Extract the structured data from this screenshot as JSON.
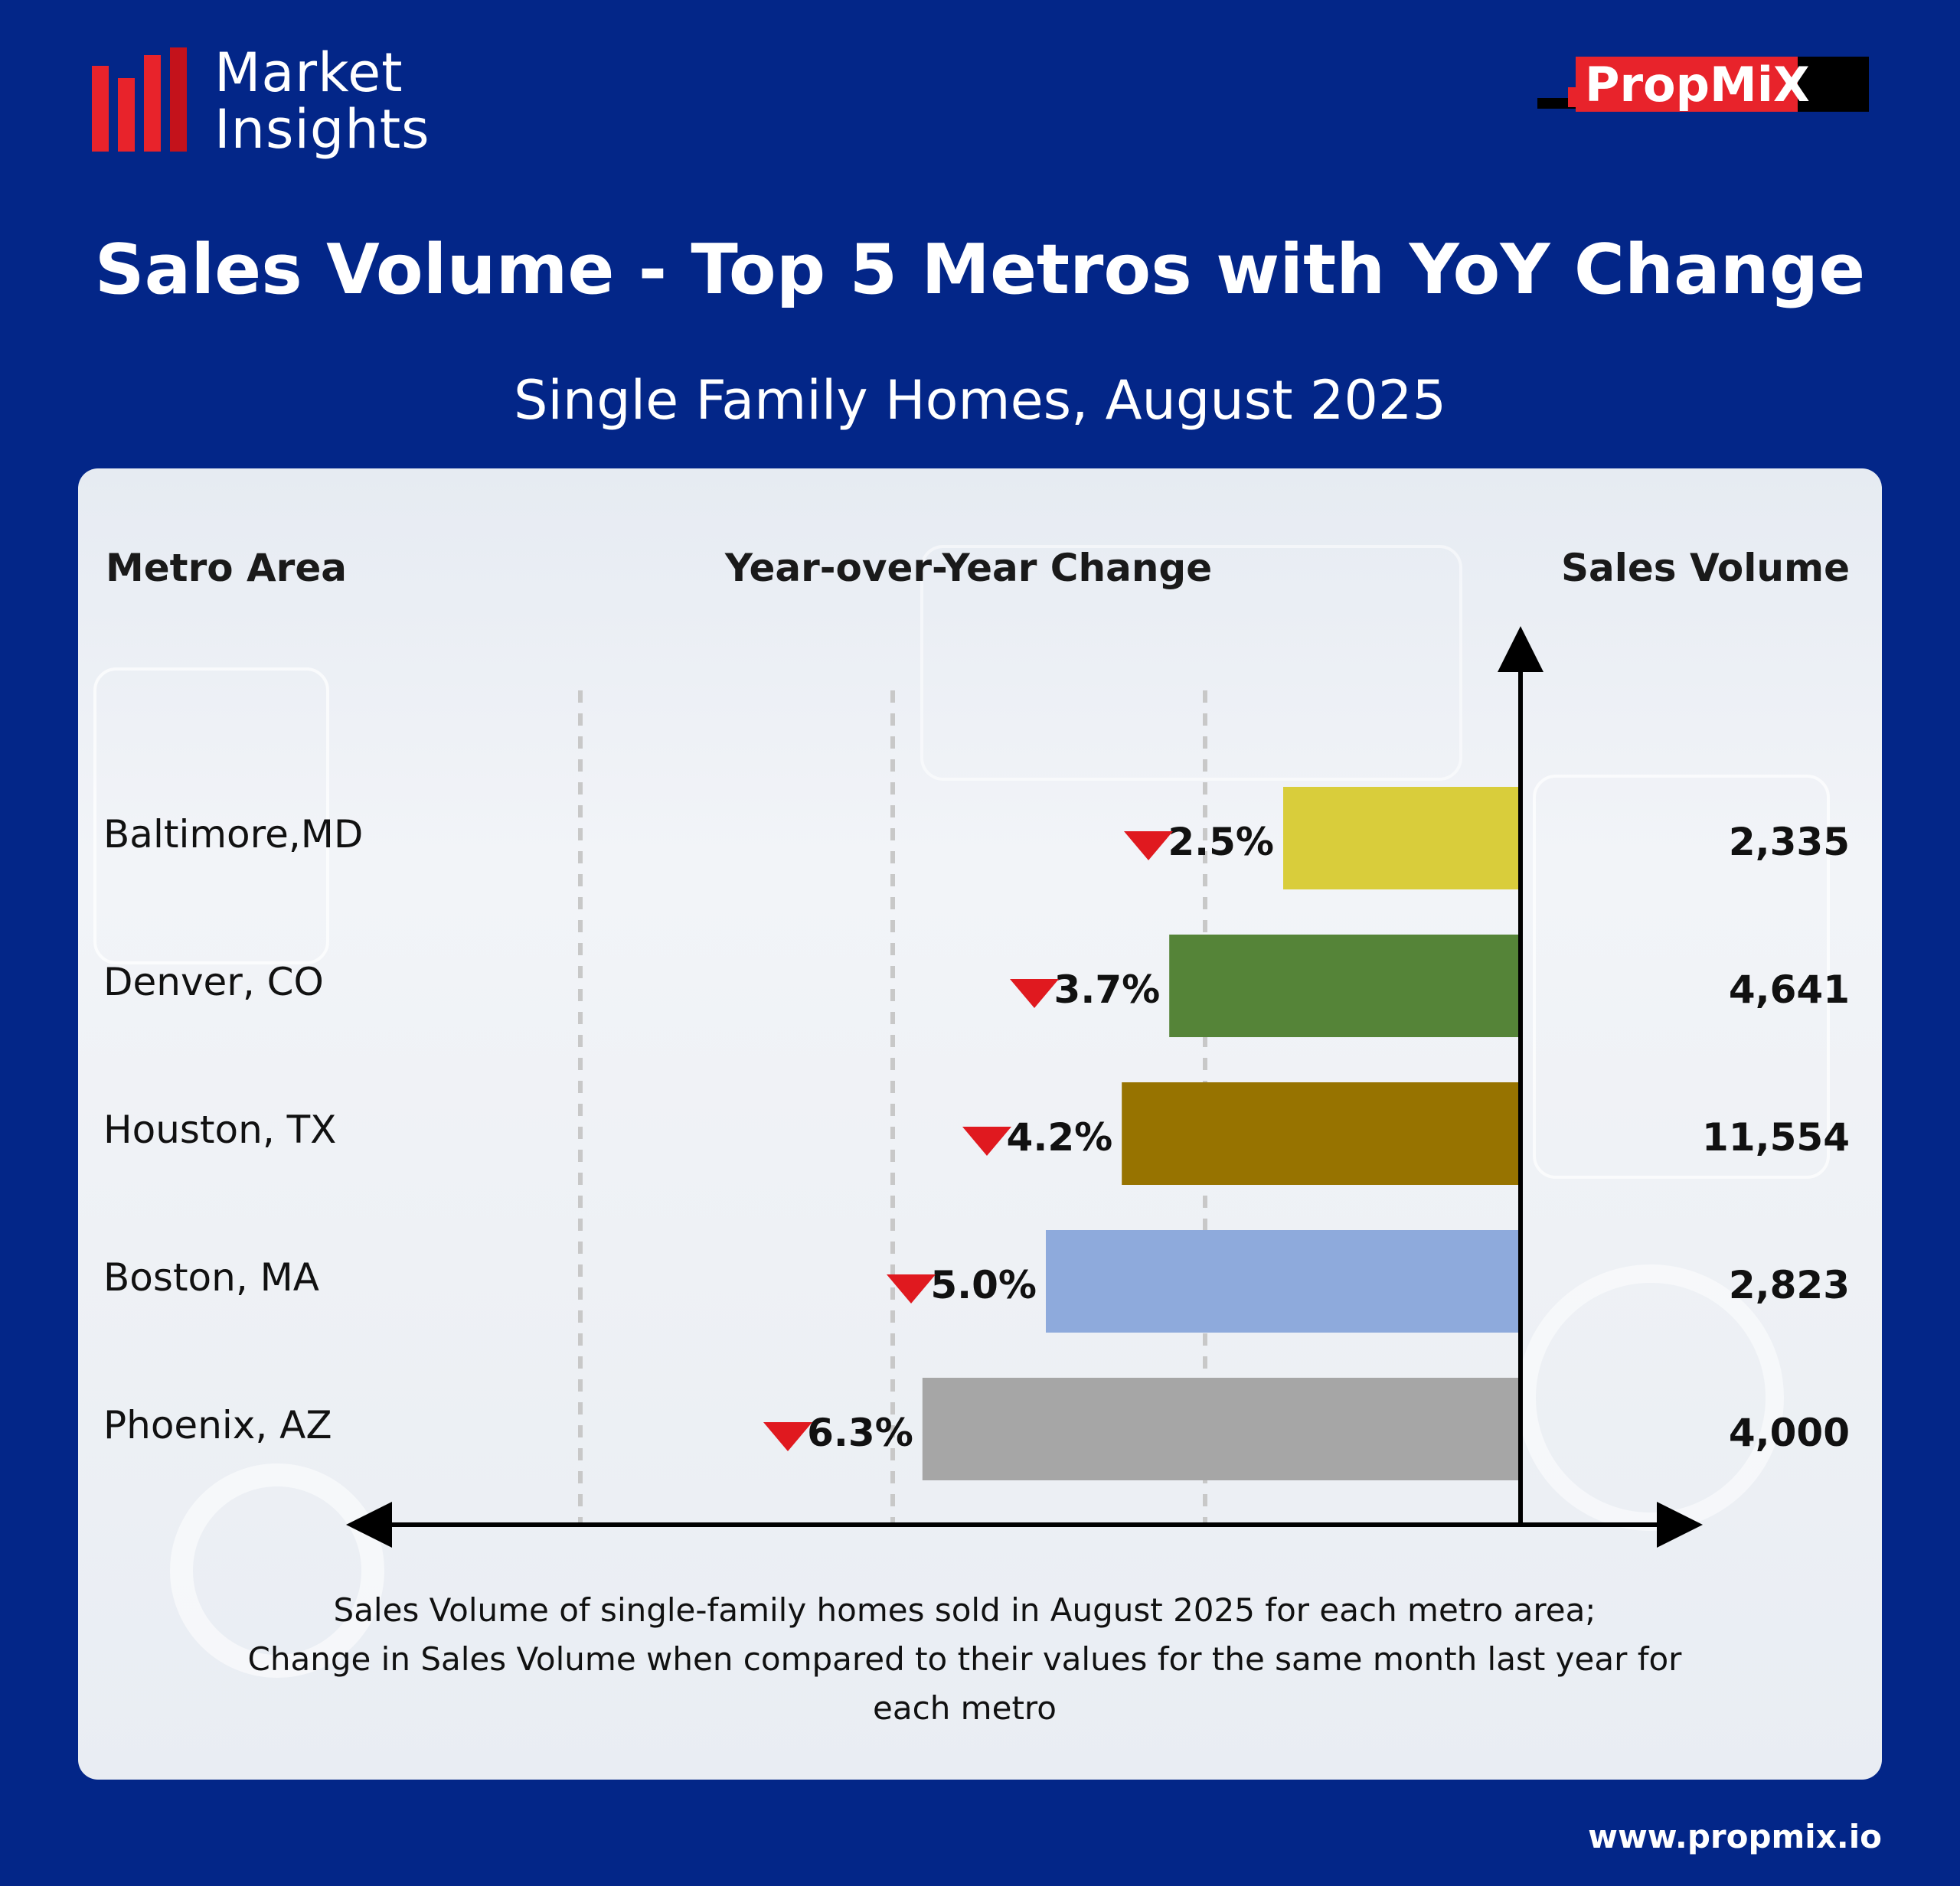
{
  "brand": {
    "line1": "Market",
    "line2": "Insights",
    "partner": "PropMiX",
    "url": "www.propmix.io",
    "accent": "#e8232b",
    "background": "#032688"
  },
  "title": "Sales Volume - Top 5 Metros with YoY Change",
  "subtitle": "Single Family Homes, August 2025",
  "headers": {
    "metro": "Metro Area",
    "yoy": "Year-over-Year Change",
    "volume": "Sales Volume"
  },
  "chart_data": {
    "type": "bar",
    "orientation": "horizontal",
    "categories": [
      "Baltimore,MD",
      "Denver, CO",
      "Houston, TX",
      "Boston, MA",
      "Phoenix, AZ"
    ],
    "yoy_change_percent": [
      -2.5,
      -3.7,
      -4.2,
      -5.0,
      -6.3
    ],
    "yoy_labels": [
      "2.5%",
      "3.7%",
      "4.2%",
      "5.0%",
      "6.3%"
    ],
    "sales_volume": [
      2335,
      4641,
      11554,
      2823,
      4000
    ],
    "sales_volume_labels": [
      "2,335",
      "4,641",
      "11,554",
      "2,823",
      "4,000"
    ],
    "colors": [
      "#d9cd3b",
      "#558438",
      "#977300",
      "#8eaadc",
      "#a6a6a6"
    ],
    "indicator": "down-triangle",
    "indicator_color": "#e0191f",
    "grid": "dashed-vertical"
  },
  "footnote": {
    "line1": "Sales Volume of single-family homes sold in August 2025 for each metro area;",
    "line2": "Change in Sales Volume when compared to their values for the same month last year for",
    "line3": "each metro"
  }
}
